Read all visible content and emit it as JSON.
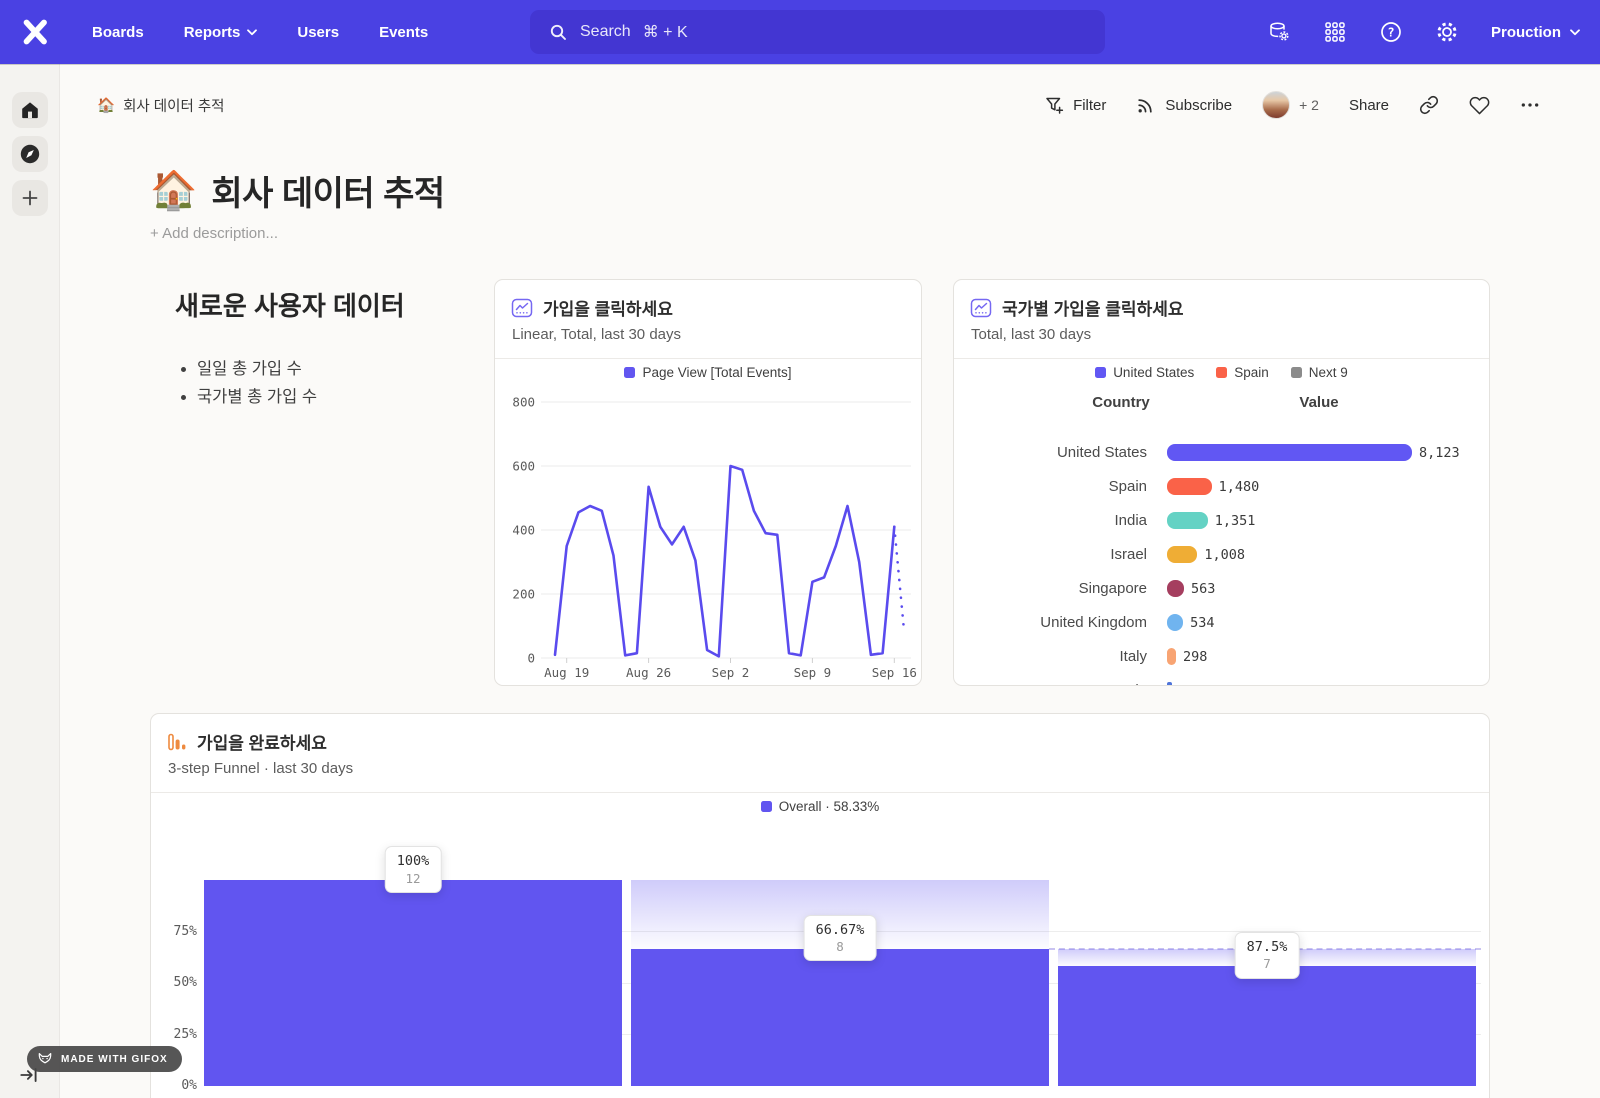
{
  "nav": {
    "menu": [
      {
        "label": "Boards",
        "chevron": false
      },
      {
        "label": "Reports",
        "chevron": true
      },
      {
        "label": "Users",
        "chevron": false
      },
      {
        "label": "Events",
        "chevron": false
      }
    ],
    "search": {
      "label": "Search",
      "shortcut": "⌘ + K"
    },
    "project": {
      "name": "Prouction"
    }
  },
  "breadcrumb": {
    "emoji": "🏠",
    "title": "회사 데이터 추적"
  },
  "toolbar": {
    "filter": "Filter",
    "subscribe": "Subscribe",
    "members_more": "+ 2",
    "share": "Share"
  },
  "page": {
    "emoji": "🏠",
    "title": "회사 데이터 추적",
    "description_placeholder": "+ Add description..."
  },
  "text_card": {
    "heading": "새로운 사용자 데이터",
    "bullets": [
      "일일 총 가입 수",
      "국가별 총 가입 수"
    ]
  },
  "badge": {
    "label": "MADE WITH GIFOX"
  },
  "chart_data": [
    {
      "id": "signups-line",
      "type": "line",
      "title": "가입을 클릭하세요",
      "subtitle": "Linear, Total, last 30 days",
      "legend": [
        {
          "label": "Page View [Total Events]",
          "color": "#6256f0"
        }
      ],
      "legend_position": "top",
      "line_color": "#5a4bee",
      "grid": true,
      "ylim": [
        0,
        800
      ],
      "y_ticks": [
        0,
        200,
        400,
        600,
        800
      ],
      "x_tick_labels": [
        "Aug 19",
        "Aug 26",
        "Sep 2",
        "Sep 9",
        "Sep 16"
      ],
      "x_tick_indices": [
        1,
        8,
        15,
        22,
        29
      ],
      "values": [
        10,
        350,
        455,
        475,
        460,
        320,
        8,
        15,
        535,
        410,
        355,
        410,
        305,
        25,
        5,
        600,
        588,
        460,
        390,
        385,
        15,
        8,
        238,
        252,
        350,
        475,
        300,
        10,
        15,
        410
      ],
      "projection": {
        "from": 410,
        "to": 100
      }
    },
    {
      "id": "signups-by-country",
      "type": "bar",
      "title": "국가별 가입을 클릭하세요",
      "subtitle": "Total, last 30 days",
      "legend": [
        {
          "label": "United States",
          "color": "#6157f3"
        },
        {
          "label": "Spain",
          "color": "#fa6248"
        },
        {
          "label": "Next 9",
          "color": "#8b8b8b"
        }
      ],
      "columns": [
        "Country",
        "Value"
      ],
      "categories": [
        "United States",
        "Spain",
        "India",
        "Israel",
        "Singapore",
        "United Kingdom",
        "Italy"
      ],
      "values": [
        8123,
        1480,
        1351,
        1008,
        563,
        534,
        298
      ],
      "value_labels": [
        "8,123",
        "1,480",
        "1,351",
        "1,008",
        "563",
        "534",
        "298"
      ],
      "bar_colors": [
        "#6157f3",
        "#fa6248",
        "#64d2c4",
        "#efad35",
        "#a53e5f",
        "#70b4ef",
        "#f8a473"
      ],
      "clipped_row": {
        "label": "Canada",
        "color": "#4f74d9"
      },
      "xlim": [
        0,
        8123
      ]
    },
    {
      "id": "signup-funnel",
      "type": "funnel",
      "title": "가입을 완료하세요",
      "subtitle": "3-step Funnel · last 30 days",
      "legend": [
        {
          "label": "Overall · 58.33%",
          "color": "#6155f0"
        }
      ],
      "bar_color": "#6155f0",
      "y_tick_labels": [
        "0%",
        "25%",
        "50%",
        "75%"
      ],
      "y_tick_values": [
        0,
        25,
        50,
        75
      ],
      "steps": [
        {
          "overall_pct": 100,
          "prev_pct": 100,
          "conversion_label": "100%",
          "count": 12
        },
        {
          "overall_pct": 66.67,
          "prev_pct": 100,
          "conversion_label": "66.67%",
          "count": 8
        },
        {
          "overall_pct": 58.33,
          "prev_pct": 66.67,
          "conversion_label": "87.5%",
          "count": 7
        }
      ],
      "reference_line_pct": 66.67
    }
  ]
}
